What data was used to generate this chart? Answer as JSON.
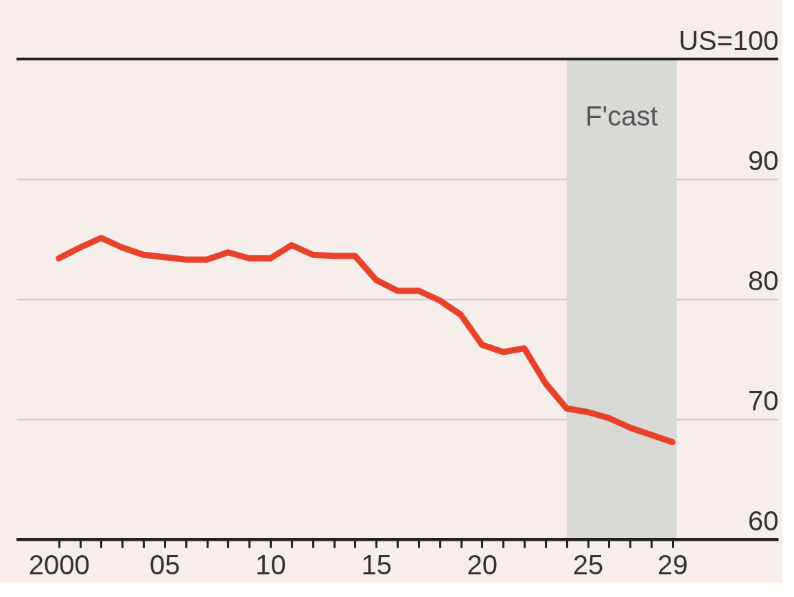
{
  "chart_data": {
    "type": "line",
    "x": [
      2000,
      2001,
      2002,
      2003,
      2004,
      2005,
      2006,
      2007,
      2008,
      2009,
      2010,
      2011,
      2012,
      2013,
      2014,
      2015,
      2016,
      2017,
      2018,
      2019,
      2020,
      2021,
      2022,
      2023,
      2024,
      2025,
      2026,
      2027,
      2028,
      2029
    ],
    "series": [
      {
        "color": "#e8412c",
        "values": [
          83.4,
          84.3,
          85.1,
          84.3,
          83.7,
          83.5,
          83.3,
          83.3,
          83.9,
          83.4,
          83.4,
          84.5,
          83.7,
          83.6,
          83.6,
          81.6,
          80.7,
          80.7,
          79.9,
          78.7,
          76.2,
          75.6,
          75.9,
          73.0,
          70.9,
          70.6,
          70.1,
          69.3,
          68.7,
          68.1
        ]
      }
    ],
    "xlim": [
      1998,
      2034
    ],
    "xticks": [
      2000,
      {
        "value": 2001,
        "label": null
      },
      {
        "value": 2002,
        "label": null
      },
      {
        "value": 2003,
        "label": null
      },
      {
        "value": 2004,
        "label": null
      },
      {
        "value": 2005,
        "label": "05"
      },
      {
        "value": 2006,
        "label": null
      },
      {
        "value": 2007,
        "label": null
      },
      {
        "value": 2008,
        "label": null
      },
      {
        "value": 2009,
        "label": null
      },
      {
        "value": 2010,
        "label": "10"
      },
      {
        "value": 2011,
        "label": null
      },
      {
        "value": 2012,
        "label": null
      },
      {
        "value": 2013,
        "label": null
      },
      {
        "value": 2014,
        "label": null
      },
      {
        "value": 2015,
        "label": "15"
      },
      {
        "value": 2016,
        "label": null
      },
      {
        "value": 2017,
        "label": null
      },
      {
        "value": 2018,
        "label": null
      },
      {
        "value": 2019,
        "label": null
      },
      {
        "value": 2020,
        "label": "20"
      },
      {
        "value": 2021,
        "label": null
      },
      {
        "value": 2022,
        "label": null
      },
      {
        "value": 2023,
        "label": null
      },
      {
        "value": 2024,
        "label": null
      },
      {
        "value": 2025,
        "label": "25"
      },
      {
        "value": 2026,
        "label": null
      },
      {
        "value": 2027,
        "label": null
      },
      {
        "value": 2028,
        "label": null
      },
      {
        "value": 2029,
        "label": "29"
      }
    ],
    "ylim": [
      60,
      100
    ],
    "yticks": [
      60,
      70,
      80,
      90,
      {
        "value": 100,
        "label": "US=100"
      }
    ],
    "bands": [
      {
        "axis": "x",
        "from": 2024,
        "to": 2029.2,
        "label": "F'cast",
        "color": "#d9d9d6"
      }
    ],
    "grid": "y",
    "line_style": "solid"
  }
}
